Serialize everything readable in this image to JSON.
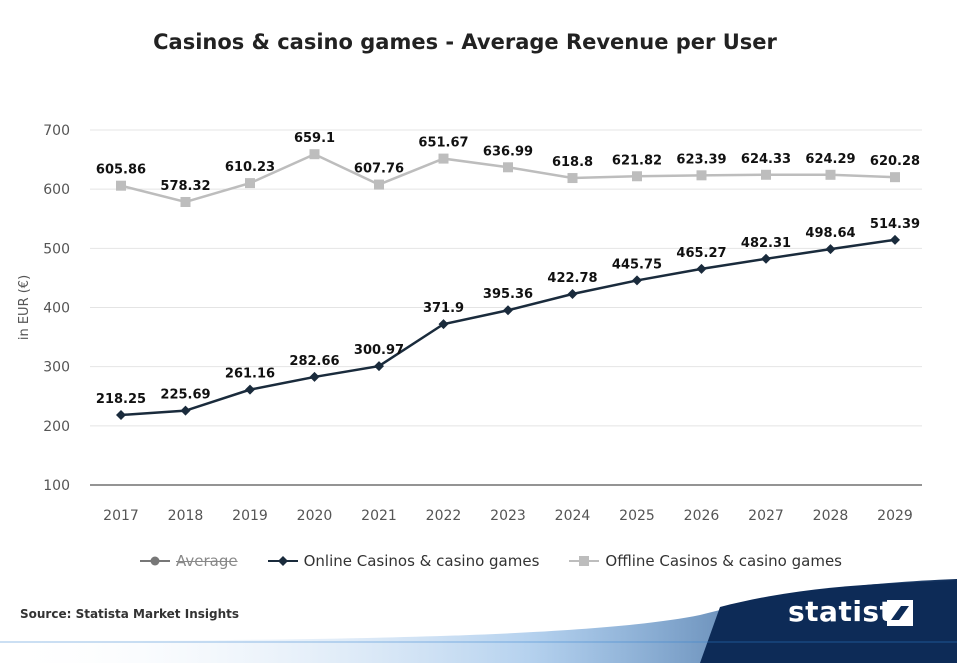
{
  "title": "Casinos & casino games - Average Revenue per User",
  "source": "Source: Statista Market Insights",
  "brand": "statista",
  "colors": {
    "online": "#1a2b3c",
    "offline": "#bdbdbd",
    "average": "#777777",
    "grid": "#e4e4e4"
  },
  "chart_data": {
    "type": "line",
    "title": "Casinos & casino games - Average Revenue per User",
    "ylabel": "in EUR (€)",
    "xlabel": "",
    "ylim": [
      100,
      700
    ],
    "yticks": [
      100,
      200,
      300,
      400,
      500,
      600,
      700
    ],
    "x": [
      "2017",
      "2018",
      "2019",
      "2020",
      "2021",
      "2022",
      "2023",
      "2024",
      "2025",
      "2026",
      "2027",
      "2028",
      "2029"
    ],
    "grid": true,
    "legend_position": "bottom",
    "series": [
      {
        "name": "Online Casinos & casino games",
        "color": "#1a2b3c",
        "marker": "diamond",
        "values": [
          218.25,
          225.69,
          261.16,
          282.66,
          300.97,
          371.9,
          395.36,
          422.78,
          445.75,
          465.27,
          482.31,
          498.64,
          514.39
        ]
      },
      {
        "name": "Offline Casinos & casino games",
        "color": "#bdbdbd",
        "marker": "square",
        "values": [
          605.86,
          578.32,
          610.23,
          659.1,
          607.76,
          651.67,
          636.99,
          618.8,
          621.82,
          623.39,
          624.33,
          624.29,
          620.28
        ]
      }
    ]
  },
  "legend": [
    {
      "label": "Average",
      "icon": "circle-marker-icon",
      "hidden": true
    },
    {
      "label": "Online Casinos & casino games",
      "icon": "diamond-marker-icon"
    },
    {
      "label": "Offline Casinos & casino games",
      "icon": "square-marker-icon"
    }
  ]
}
